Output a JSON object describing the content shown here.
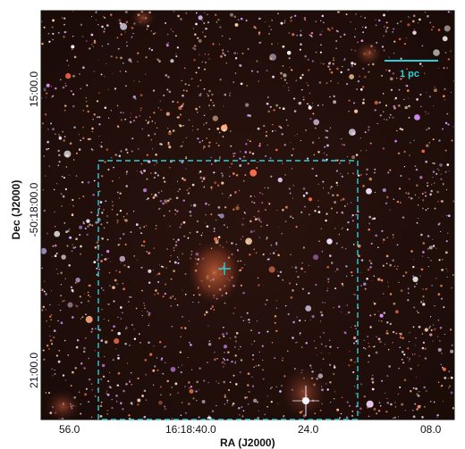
{
  "image": {
    "x_axis_label": "RA (J2000)",
    "y_axis_label": "Dec (J2000)",
    "x_ticks": [
      "56.0",
      "16:18:40.0",
      "24.0",
      "08.0"
    ],
    "y_ticks": [
      "15:00.0",
      "-50:18:00.0",
      "21:00.0"
    ],
    "scale_bar_label": "1 pc",
    "overlay_color": "#2ad0d8"
  }
}
